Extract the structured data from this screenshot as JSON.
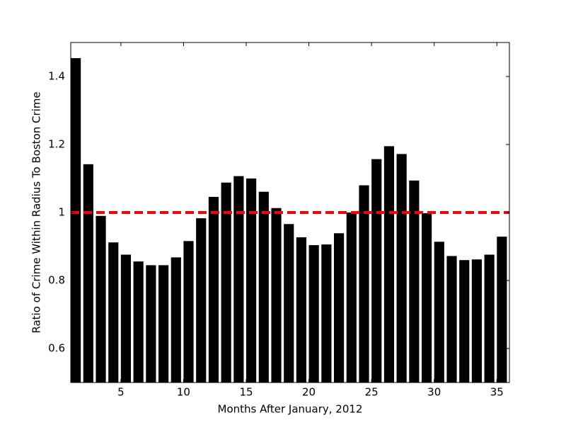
{
  "chart_data": {
    "type": "bar",
    "x": [
      1,
      2,
      3,
      4,
      5,
      6,
      7,
      8,
      9,
      10,
      11,
      12,
      13,
      14,
      15,
      16,
      17,
      18,
      19,
      20,
      21,
      22,
      23,
      24,
      25,
      26,
      27,
      28,
      29,
      30,
      31,
      32,
      33,
      34,
      35
    ],
    "values": [
      1.454,
      1.142,
      0.99,
      0.912,
      0.876,
      0.856,
      0.845,
      0.845,
      0.868,
      0.916,
      0.983,
      1.046,
      1.088,
      1.107,
      1.1,
      1.061,
      1.013,
      0.966,
      0.927,
      0.904,
      0.906,
      0.939,
      1.0,
      1.08,
      1.157,
      1.195,
      1.172,
      1.094,
      0.998,
      0.914,
      0.872,
      0.86,
      0.862,
      0.876,
      0.929
    ],
    "color": "#000000",
    "xlabel": "Months After January, 2012",
    "ylabel": "Ratio of Crime Within Radius To Boston Crime",
    "xlim": [
      1,
      36
    ],
    "xticks": [
      5,
      10,
      15,
      20,
      25,
      30,
      35
    ],
    "ylim": [
      0.5,
      1.5
    ],
    "yticks": [
      0.6,
      0.8,
      1.0,
      1.2,
      1.4
    ],
    "reference_line": {
      "value": 1.0,
      "color": "#ff0000"
    },
    "grid": false
  }
}
